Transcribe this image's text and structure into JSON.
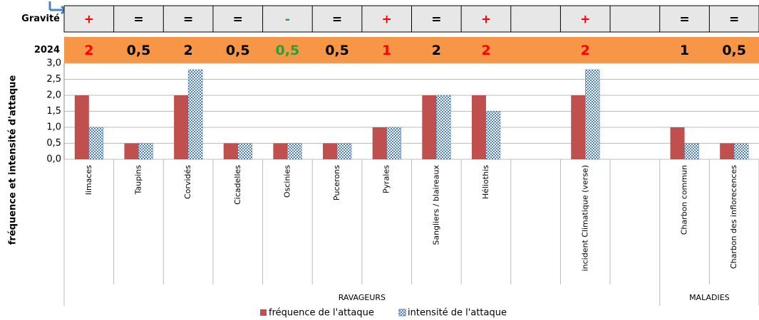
{
  "chart_data": {
    "type": "bar",
    "ylabel": "fréquence et intensité d'attaque",
    "categories": [
      "limaces",
      "Taupins",
      "Corvidés",
      "Cicadelles",
      "Oscinies",
      "Pucerons",
      "Pyrales",
      "Sangliers / blaireaux",
      "Héliothis",
      null,
      "incident Climatique (verse)",
      null,
      "Charbon commun",
      "Charbon des inflorecences"
    ],
    "series": [
      {
        "name": "fréquence de l'attaque",
        "color": "#c0504d",
        "values": [
          2,
          0.5,
          2,
          0.5,
          0.5,
          0.5,
          1,
          2,
          2,
          null,
          2,
          null,
          1,
          0.5
        ]
      },
      {
        "name": "intensité de l'attaque",
        "color": "#4f81bd",
        "values": [
          1,
          0.5,
          2.8,
          0.5,
          0.5,
          0.5,
          1,
          2,
          1.5,
          null,
          2.8,
          null,
          0.5,
          0.5
        ]
      }
    ],
    "ylim": [
      0,
      3
    ],
    "yticks": [
      {
        "value": 0,
        "label": "0,0"
      },
      {
        "value": 0.5,
        "label": "0,5"
      },
      {
        "value": 1,
        "label": "1,0"
      },
      {
        "value": 1.5,
        "label": "1,5"
      },
      {
        "value": 2,
        "label": "2,0"
      },
      {
        "value": 2.5,
        "label": "2,5"
      },
      {
        "value": 3,
        "label": "3,0"
      }
    ],
    "grid": true,
    "groups": [
      {
        "label": "RAVAGEURS",
        "span": 12
      },
      {
        "label": "MALADIES",
        "span": 2
      }
    ],
    "rows": [
      {
        "label": "Gravité",
        "background": "#e7e7e7",
        "cells": [
          {
            "text": "+",
            "color": "#ff0000"
          },
          {
            "text": "=",
            "color": "#000000"
          },
          {
            "text": "=",
            "color": "#000000"
          },
          {
            "text": "=",
            "color": "#000000"
          },
          {
            "text": "-",
            "color": "#22a33a"
          },
          {
            "text": "=",
            "color": "#000000"
          },
          {
            "text": "+",
            "color": "#ff0000"
          },
          {
            "text": "=",
            "color": "#000000"
          },
          {
            "text": "+",
            "color": "#ff0000"
          },
          null,
          {
            "text": "+",
            "color": "#ff0000"
          },
          null,
          {
            "text": "=",
            "color": "#000000"
          },
          {
            "text": "=",
            "color": "#000000"
          }
        ]
      },
      {
        "label": "2024",
        "background": "#f79646",
        "cells": [
          {
            "text": "2",
            "color": "#ff0000"
          },
          {
            "text": "0,5",
            "color": "#000000"
          },
          {
            "text": "2",
            "color": "#000000"
          },
          {
            "text": "0,5",
            "color": "#000000"
          },
          {
            "text": "0,5",
            "color": "#22a33a"
          },
          {
            "text": "0,5",
            "color": "#000000"
          },
          {
            "text": "1",
            "color": "#ff0000"
          },
          {
            "text": "2",
            "color": "#000000"
          },
          {
            "text": "2",
            "color": "#ff0000"
          },
          null,
          {
            "text": "2",
            "color": "#ff0000"
          },
          null,
          {
            "text": "1",
            "color": "#000000"
          },
          {
            "text": "0,5",
            "color": "#000000"
          }
        ]
      }
    ]
  }
}
